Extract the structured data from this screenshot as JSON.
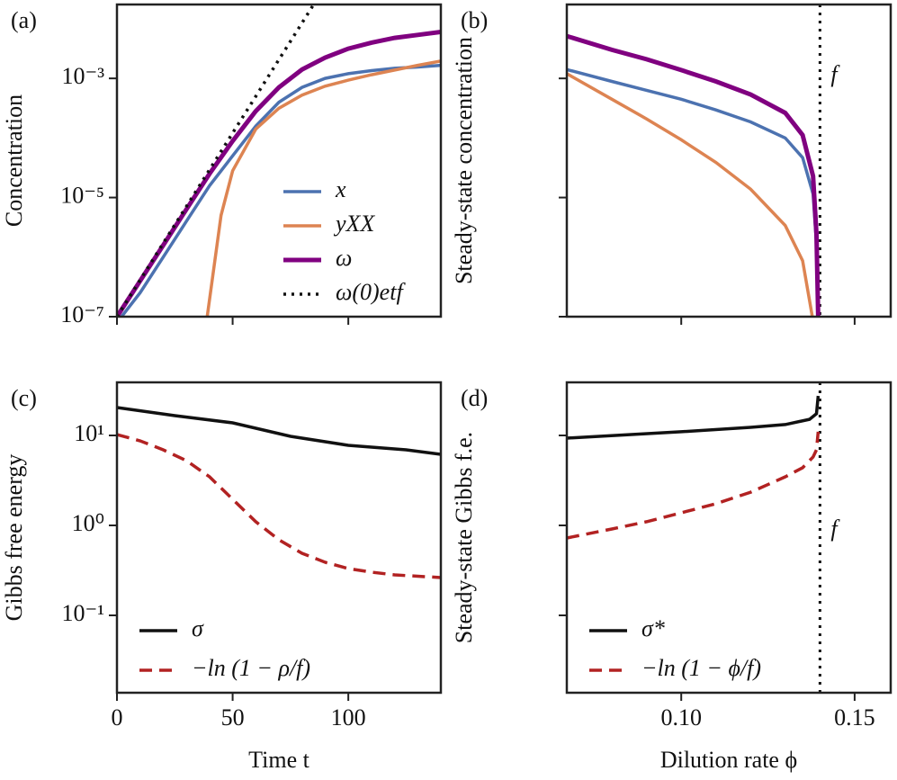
{
  "chart_data": [
    {
      "type": "line",
      "panel": "(a)",
      "ylabel": "Concentration",
      "log_y": true,
      "xlim": [
        0,
        140
      ],
      "xticks": [
        0,
        50,
        100
      ],
      "ylim": [
        1e-07,
        0.0174
      ],
      "yticks": [
        {
          "value": 1e-07,
          "label": "10⁻⁷"
        },
        {
          "value": 1e-05,
          "label": "10⁻⁵"
        },
        {
          "value": 0.001,
          "label": "10⁻³"
        }
      ],
      "legend": "lower right",
      "series": [
        {
          "name": "x",
          "color": "#4c72b0",
          "dash": "solid",
          "x": [
            2,
            10,
            20,
            30,
            40,
            50,
            60,
            70,
            80,
            90,
            100,
            110,
            120,
            130,
            140
          ],
          "values": [
            1e-07,
            2.51e-07,
            1e-06,
            3.98e-06,
            1.58e-05,
            5.01e-05,
            0.000158,
            0.000398,
            0.000708,
            0.001,
            0.0012,
            0.00135,
            0.00148,
            0.00155,
            0.00166
          ]
        },
        {
          "name": "yXX",
          "color": "#dd8452",
          "dash": "solid",
          "x": [
            39,
            45,
            50,
            60,
            70,
            80,
            90,
            100,
            110,
            120,
            130,
            140
          ],
          "values": [
            1e-07,
            5.01e-06,
            2.82e-05,
            0.000141,
            0.000316,
            0.000525,
            0.000741,
            0.000933,
            0.00115,
            0.00138,
            0.00166,
            0.00195
          ]
        },
        {
          "name": "ω",
          "color": "#800080",
          "dash": "solid",
          "x": [
            0,
            10,
            20,
            30,
            40,
            50,
            60,
            70,
            80,
            90,
            100,
            110,
            120,
            130,
            140
          ],
          "values": [
            1e-07,
            3.98e-07,
            1.58e-06,
            6.31e-06,
            2.51e-05,
            8.91e-05,
            0.000282,
            0.000708,
            0.00141,
            0.00224,
            0.00316,
            0.00398,
            0.00479,
            0.00537,
            0.00603
          ]
        },
        {
          "name": "ω(0)etf",
          "color": "#111111",
          "dash": "dotted",
          "x": [
            0,
            85
          ],
          "values": [
            1e-07,
            0.0174
          ]
        }
      ]
    },
    {
      "type": "line",
      "panel": "(b)",
      "ylabel": "Steady-state concentration",
      "log_y": true,
      "xlim": [
        0.067,
        0.1604
      ],
      "xticks": [
        {
          "value": 0.1,
          "label": "0.10"
        },
        {
          "value": 0.15,
          "label": "0.15"
        }
      ],
      "ylim": [
        1e-07,
        0.0174
      ],
      "yticks": [
        1e-07,
        1e-05,
        0.001
      ],
      "vline": 0.14,
      "annotations": [
        "f"
      ],
      "series": [
        {
          "name": "x",
          "color": "#4c72b0",
          "dash": "solid",
          "x": [
            0.067,
            0.08,
            0.09,
            0.1,
            0.11,
            0.12,
            0.13,
            0.135,
            0.138,
            0.139,
            0.1395
          ],
          "values": [
            0.00141,
            0.000891,
            0.000631,
            0.000447,
            0.000295,
            0.000186,
            0.0001,
            4.68e-05,
            1.15e-05,
            1.7e-06,
            1e-07
          ]
        },
        {
          "name": "yXX",
          "color": "#dd8452",
          "dash": "solid",
          "x": [
            0.067,
            0.08,
            0.09,
            0.1,
            0.11,
            0.12,
            0.13,
            0.135,
            0.1378
          ],
          "values": [
            0.0012,
            0.000447,
            0.000209,
            9.33e-05,
            3.89e-05,
            1.38e-05,
            3.39e-06,
            8.71e-07,
            1e-07
          ]
        },
        {
          "name": "ω",
          "color": "#800080",
          "dash": "solid",
          "x": [
            0.067,
            0.08,
            0.09,
            0.1,
            0.11,
            0.12,
            0.13,
            0.135,
            0.138,
            0.139,
            0.1395
          ],
          "values": [
            0.00513,
            0.00302,
            0.00209,
            0.00138,
            0.000891,
            0.000537,
            0.000263,
            0.000112,
            2.29e-05,
            2.4e-06,
            1e-07
          ]
        }
      ]
    },
    {
      "type": "line",
      "panel": "(c)",
      "ylabel": "Gibbs free energy",
      "xlabel": "Time t",
      "log_y": true,
      "xlim": [
        0,
        140
      ],
      "xticks": [
        0,
        50,
        100
      ],
      "ylim": [
        0.0138,
        38.9
      ],
      "yticks": [
        {
          "value": 0.1,
          "label": "10⁻¹"
        },
        {
          "value": 1,
          "label": "10⁰"
        },
        {
          "value": 10,
          "label": "10¹"
        }
      ],
      "legend": "lower left",
      "series": [
        {
          "name": "σ",
          "color": "#111111",
          "dash": "solid",
          "x": [
            0,
            25,
            50,
            75,
            100,
            125,
            140
          ],
          "values": [
            20.4,
            16.6,
            13.8,
            9.77,
            7.76,
            6.92,
            6.17
          ]
        },
        {
          "name": "−ln (1 − ρ/f)",
          "color": "#b22222",
          "dash": "dashed",
          "x": [
            0,
            10,
            20,
            30,
            40,
            50,
            60,
            70,
            80,
            90,
            100,
            110,
            120,
            140
          ],
          "values": [
            10.2,
            8.71,
            6.92,
            5.25,
            3.47,
            1.95,
            1.1,
            0.692,
            0.49,
            0.389,
            0.331,
            0.302,
            0.282,
            0.263
          ]
        }
      ]
    },
    {
      "type": "line",
      "panel": "(d)",
      "ylabel": "Steady-state Gibbs f.e.",
      "xlabel": "Dilution rate ϕ",
      "log_y": true,
      "xlim": [
        0.067,
        0.1604
      ],
      "xticks": [
        {
          "value": 0.1,
          "label": "0.10"
        },
        {
          "value": 0.15,
          "label": "0.15"
        }
      ],
      "ylim": [
        0.0138,
        38.9
      ],
      "yticks": [
        0.1,
        1,
        10
      ],
      "vline": 0.14,
      "annotations": [
        "f"
      ],
      "legend": "lower left",
      "series": [
        {
          "name": "σ*",
          "color": "#111111",
          "dash": "solid",
          "x": [
            0.067,
            0.1,
            0.12,
            0.13,
            0.137,
            0.139,
            0.1395
          ],
          "values": [
            9.33,
            11.0,
            12.3,
            13.2,
            15.1,
            17.4,
            27.5
          ]
        },
        {
          "name": "−ln (1 − ϕ/f)",
          "color": "#b22222",
          "dash": "dashed",
          "x": [
            0.067,
            0.08,
            0.09,
            0.1,
            0.11,
            0.12,
            0.13,
            0.135,
            0.138,
            0.139,
            0.1395
          ],
          "values": [
            0.724,
            0.912,
            1.1,
            1.38,
            1.74,
            2.34,
            3.47,
            4.37,
            5.75,
            6.92,
            11.0
          ]
        }
      ]
    }
  ]
}
